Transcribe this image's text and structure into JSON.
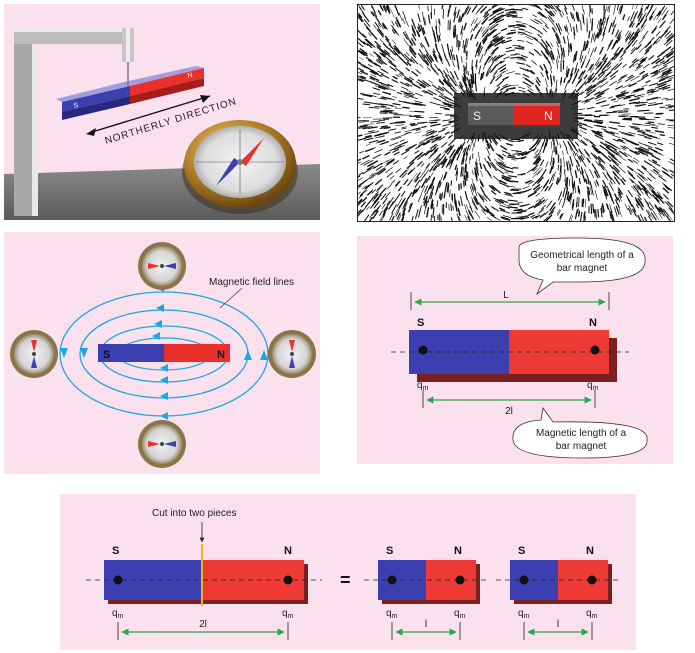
{
  "panel1": {
    "direction_label": "NORTHERLY DIRECTION",
    "magnet_s": "S",
    "magnet_n": "N"
  },
  "panel2": {
    "magnet_s": "S",
    "magnet_n": "N"
  },
  "panel3": {
    "field_lines_label": "Magnetic field lines",
    "magnet_s": "S",
    "magnet_n": "N"
  },
  "panel4": {
    "geometric_label_line1": "Geometrical length of a",
    "geometric_label_line2": "bar magnet",
    "geometric_length": "L",
    "pole_s": "S",
    "pole_n": "N",
    "charge_left": "q",
    "charge_left_sub": "m",
    "charge_right": "q",
    "charge_right_sub": "m",
    "magnetic_length": "2l",
    "magnetic_label_line1": "Magnetic length of a",
    "magnetic_label_line2": "bar magnet"
  },
  "panel5": {
    "cut_label": "Cut into two pieces",
    "pole_s": "S",
    "pole_n": "N",
    "charge": "q",
    "charge_sub": "m",
    "full_length": "2l",
    "equals": "=",
    "piece1_s": "S",
    "piece1_n": "N",
    "piece2_s": "S",
    "piece2_n": "N",
    "piece_length_1": "l",
    "piece_length_2": "l"
  },
  "colors": {
    "panel_bg": "#fbe1ee",
    "south": "#3c3fb0",
    "north": "#e8302c",
    "field": "#1aa8e0",
    "measure": "#2aa84a",
    "cut": "#f2b21c"
  }
}
